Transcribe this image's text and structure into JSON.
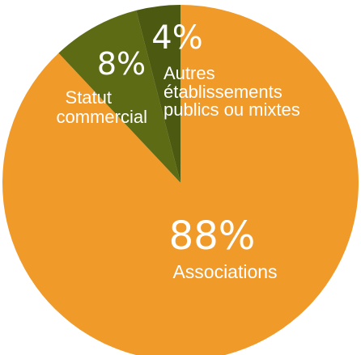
{
  "chart_data": {
    "type": "pie",
    "slices": [
      {
        "label": "Associations",
        "value": 88,
        "value_label": "88%",
        "color": "#F09A2A"
      },
      {
        "label": "Statut commercial",
        "value": 8,
        "value_label": "8%",
        "color": "#5E6B15"
      },
      {
        "label": "Autres établissements publics ou mixtes",
        "value": 4,
        "value_label": "4%",
        "color": "#4B5A10"
      }
    ]
  },
  "text": {
    "associations_pct": "88%",
    "associations_label": "Associations",
    "commercial_pct": "8%",
    "commercial_label_1": "Statut",
    "commercial_label_2": "commercial",
    "autres_pct": "4%",
    "autres_label_1": "Autres",
    "autres_label_2": "établissements",
    "autres_label_3": "publics ou mixtes"
  }
}
